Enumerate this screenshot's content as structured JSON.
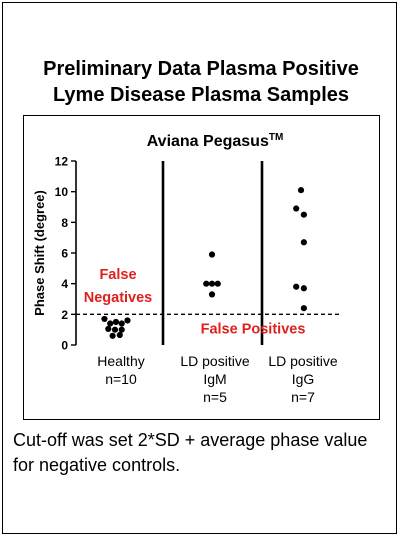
{
  "page": {
    "title_line1": "Preliminary Data Plasma Positive",
    "title_line2": "Lyme Disease Plasma Samples",
    "footnote": "Cut-off was set 2*SD + average phase value for negative controls."
  },
  "chart_data": {
    "type": "scatter",
    "title": "Aviana Pegasus",
    "title_superscript": "TM",
    "ylabel": "Phase Shift (degree)",
    "xlabel": "",
    "ylim": [
      0,
      12
    ],
    "yticks": [
      0,
      2,
      4,
      6,
      8,
      10,
      12
    ],
    "cutoff": 2,
    "categories": [
      {
        "lines": [
          "Healthy",
          "n=10"
        ]
      },
      {
        "lines": [
          "LD positive",
          "IgM",
          "n=5"
        ]
      },
      {
        "lines": [
          "LD positive",
          "IgG",
          "n=7"
        ]
      }
    ],
    "series": [
      {
        "points": [
          [
            -0.22,
            1.7
          ],
          [
            -0.1,
            1.4
          ],
          [
            0.02,
            1.5
          ],
          [
            0.14,
            1.4
          ],
          [
            0.26,
            1.6
          ],
          [
            -0.14,
            1.05
          ],
          [
            0.0,
            1.0
          ],
          [
            0.14,
            1.0
          ],
          [
            -0.05,
            0.6
          ],
          [
            0.1,
            0.65
          ]
        ]
      },
      {
        "points": [
          [
            0.0,
            5.9
          ],
          [
            -0.12,
            4.0
          ],
          [
            0.0,
            4.0
          ],
          [
            0.12,
            4.0
          ],
          [
            0.0,
            3.3
          ]
        ]
      },
      {
        "points": [
          [
            0.0,
            10.1
          ],
          [
            -0.1,
            8.9
          ],
          [
            0.06,
            8.5
          ],
          [
            0.06,
            6.7
          ],
          [
            -0.1,
            3.8
          ],
          [
            0.06,
            3.7
          ],
          [
            0.06,
            2.4
          ]
        ]
      }
    ],
    "annotations": [
      {
        "text_lines": [
          "False",
          "Negatives"
        ],
        "color": "#e0201e"
      },
      {
        "text_lines": [
          "False Positives"
        ],
        "color": "#e0201e"
      }
    ]
  }
}
